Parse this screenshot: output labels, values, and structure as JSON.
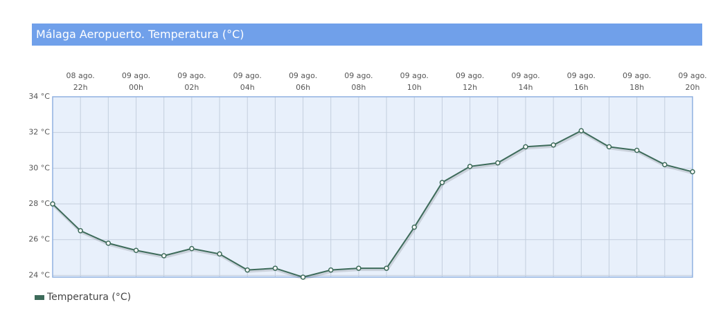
{
  "chart_data": {
    "type": "line",
    "title": "Málaga Aeropuerto. Temperatura (°C)",
    "categories": [
      null,
      "08 ago. 22h",
      null,
      "09 ago. 00h",
      null,
      "09 ago. 02h",
      null,
      "09 ago. 04h",
      null,
      "09 ago. 06h",
      null,
      "09 ago. 08h",
      null,
      "09 ago. 10h",
      null,
      "09 ago. 12h",
      null,
      "09 ago. 14h",
      null,
      "09 ago. 16h",
      null,
      "09 ago. 18h",
      null,
      "09 ago. 20h"
    ],
    "series": [
      {
        "name": "Temperatura (°C)",
        "color": "#3d6b5a",
        "values": [
          28.0,
          26.5,
          25.8,
          25.4,
          25.1,
          25.5,
          25.2,
          24.3,
          24.4,
          23.9,
          24.3,
          24.4,
          24.4,
          26.7,
          29.2,
          30.1,
          30.3,
          31.2,
          31.3,
          32.1,
          31.2,
          31.0,
          30.2,
          29.8
        ]
      }
    ],
    "ylim": [
      23.9,
      34
    ],
    "yticks": [
      {
        "value": 24,
        "label": "24 °C"
      },
      {
        "value": 26,
        "label": "26 °C"
      },
      {
        "value": 28,
        "label": "28 °C"
      },
      {
        "value": 30,
        "label": "30 °C"
      },
      {
        "value": 32,
        "label": "32 °C"
      },
      {
        "value": 34,
        "label": "34 °C"
      }
    ],
    "grid": true
  }
}
